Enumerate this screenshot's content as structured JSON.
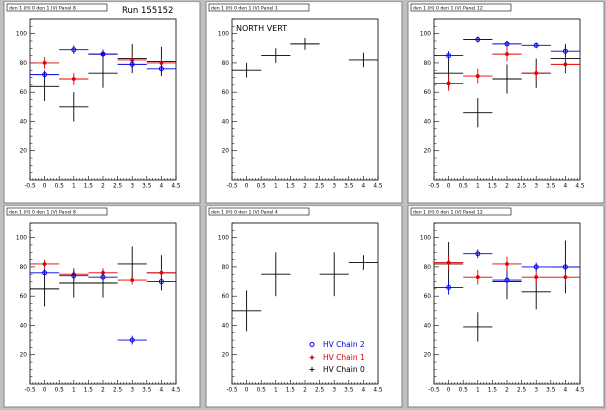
{
  "colors": {
    "background": "#c0c0c0",
    "chain0": "#000000",
    "chain1": "#e00000",
    "chain2": "#0000e0"
  },
  "legend": {
    "chain2": "HV Chain 2",
    "chain1": "HV Chain 1",
    "chain0": "HV Chain 0"
  },
  "chart_data": [
    {
      "type": "scatter",
      "header": "den 1 (H) 0 den 1 (V) Panel 8",
      "title": "Run 155152",
      "xlim": [
        -0.5,
        4.5
      ],
      "ylim": [
        0,
        110
      ],
      "xticks": [
        "-0.5",
        "0",
        "0.5",
        "1",
        "1.5",
        "2",
        "2.5",
        "3",
        "3.5",
        "4",
        "4.5"
      ],
      "yticks": [
        "20",
        "40",
        "60",
        "80",
        "100"
      ],
      "series": [
        {
          "chain": "chain0",
          "points": [
            [
              0,
              64,
              10
            ],
            [
              1,
              50,
              10
            ],
            [
              2,
              73,
              10
            ],
            [
              3,
              83,
              10
            ],
            [
              4,
              81,
              10
            ]
          ]
        },
        {
          "chain": "chain1",
          "points": [
            [
              0,
              80,
              4
            ],
            [
              1,
              69,
              4
            ],
            [
              2,
              86,
              3
            ],
            [
              3,
              82,
              3
            ],
            [
              4,
              80,
              3
            ]
          ]
        },
        {
          "chain": "chain2",
          "points": [
            [
              0,
              72,
              3
            ],
            [
              1,
              89,
              3
            ],
            [
              2,
              86,
              3
            ],
            [
              3,
              79,
              3
            ],
            [
              4,
              76,
              3
            ]
          ]
        }
      ]
    },
    {
      "type": "scatter",
      "header": "den 1 (H) 0 den 1 (V) Panel 1",
      "title": "NORTH VERT",
      "xlim": [
        -0.5,
        4.5
      ],
      "ylim": [
        0,
        110
      ],
      "xticks": [
        "-0.5",
        "0",
        "0.5",
        "1",
        "1.5",
        "2",
        "2.5",
        "3",
        "3.5",
        "4",
        "4.5"
      ],
      "yticks": [
        "20",
        "40",
        "60",
        "80",
        "100"
      ],
      "series": [
        {
          "chain": "chain0",
          "points": [
            [
              0,
              75,
              5
            ],
            [
              1,
              85,
              5
            ],
            [
              2,
              93,
              4
            ],
            [
              4,
              82,
              5
            ]
          ]
        }
      ]
    },
    {
      "type": "scatter",
      "header": "den 1 (H) 0 den 1 (V) Panel 12",
      "title": "",
      "xlim": [
        -0.5,
        4.5
      ],
      "ylim": [
        0,
        110
      ],
      "xticks": [
        "-0.5",
        "0",
        "0.5",
        "1",
        "1.5",
        "2",
        "2.5",
        "3",
        "3.5",
        "4",
        "4.5"
      ],
      "yticks": [
        "20",
        "40",
        "60",
        "80",
        "100"
      ],
      "series": [
        {
          "chain": "chain0",
          "points": [
            [
              0,
              73,
              10
            ],
            [
              1,
              46,
              10
            ],
            [
              2,
              69,
              10
            ],
            [
              3,
              73,
              10
            ],
            [
              4,
              83,
              10
            ]
          ]
        },
        {
          "chain": "chain1",
          "points": [
            [
              0,
              66,
              5
            ],
            [
              1,
              71,
              5
            ],
            [
              2,
              86,
              5
            ],
            [
              3,
              73,
              5
            ],
            [
              4,
              79,
              5
            ]
          ]
        },
        {
          "chain": "chain2",
          "points": [
            [
              0,
              85,
              3
            ],
            [
              1,
              96,
              2
            ],
            [
              2,
              93,
              2
            ],
            [
              3,
              92,
              2
            ],
            [
              4,
              88,
              3
            ]
          ]
        }
      ]
    },
    {
      "type": "scatter",
      "header": "den 1 (H) 0 den 1 (V) Panel 8",
      "title": "",
      "xlim": [
        -0.5,
        4.5
      ],
      "ylim": [
        0,
        110
      ],
      "xticks": [
        "-0.5",
        "0",
        "0.5",
        "1",
        "1.5",
        "2",
        "2.5",
        "3",
        "3.5",
        "4",
        "4.5"
      ],
      "yticks": [
        "20",
        "40",
        "60",
        "80",
        "100"
      ],
      "series": [
        {
          "chain": "chain0",
          "points": [
            [
              0,
              65,
              12
            ],
            [
              1,
              69,
              10
            ],
            [
              2,
              69,
              10
            ],
            [
              3,
              82,
              12
            ],
            [
              4,
              76,
              12
            ]
          ]
        },
        {
          "chain": "chain1",
          "points": [
            [
              0,
              82,
              3
            ],
            [
              1,
              75,
              3
            ],
            [
              2,
              76,
              3
            ],
            [
              3,
              71,
              3
            ],
            [
              4,
              76,
              3
            ]
          ]
        },
        {
          "chain": "chain2",
          "points": [
            [
              0,
              76,
              3
            ],
            [
              1,
              74,
              3
            ],
            [
              2,
              73,
              3
            ],
            [
              3,
              30,
              3
            ],
            [
              4,
              70,
              3
            ]
          ]
        }
      ]
    },
    {
      "type": "scatter",
      "header": "den 1 (H) 0 den 1 (V) Panel 4",
      "title": "",
      "xlim": [
        -0.5,
        4.5
      ],
      "ylim": [
        0,
        110
      ],
      "xticks": [
        "-0.5",
        "0",
        "0.5",
        "1",
        "1.5",
        "2",
        "2.5",
        "3",
        "3.5",
        "4",
        "4.5"
      ],
      "yticks": [
        "20",
        "40",
        "60",
        "80",
        "100"
      ],
      "legend": true,
      "series": [
        {
          "chain": "chain0",
          "points": [
            [
              0,
              50,
              14
            ],
            [
              1,
              75,
              15
            ],
            [
              3,
              75,
              15
            ],
            [
              4,
              83,
              5
            ]
          ]
        }
      ]
    },
    {
      "type": "scatter",
      "header": "den 1 (H) 0 den 1 (V) Panel 12",
      "title": "",
      "xlim": [
        -0.5,
        4.5
      ],
      "ylim": [
        0,
        110
      ],
      "xticks": [
        "-0.5",
        "0",
        "0.5",
        "1",
        "1.5",
        "2",
        "2.5",
        "3",
        "3.5",
        "4",
        "4.5"
      ],
      "yticks": [
        "20",
        "40",
        "60",
        "80",
        "100"
      ],
      "series": [
        {
          "chain": "chain0",
          "points": [
            [
              0,
              82,
              15
            ],
            [
              1,
              39,
              10
            ],
            [
              2,
              70,
              12
            ],
            [
              3,
              63,
              12
            ],
            [
              4,
              80,
              18
            ]
          ]
        },
        {
          "chain": "chain1",
          "points": [
            [
              0,
              83,
              5
            ],
            [
              1,
              73,
              5
            ],
            [
              2,
              82,
              5
            ],
            [
              3,
              73,
              5
            ],
            [
              4,
              73,
              5
            ]
          ]
        },
        {
          "chain": "chain2",
          "points": [
            [
              0,
              66,
              5
            ],
            [
              1,
              89,
              3
            ],
            [
              2,
              71,
              5
            ],
            [
              3,
              80,
              3
            ],
            [
              4,
              80,
              3
            ]
          ]
        }
      ]
    }
  ]
}
